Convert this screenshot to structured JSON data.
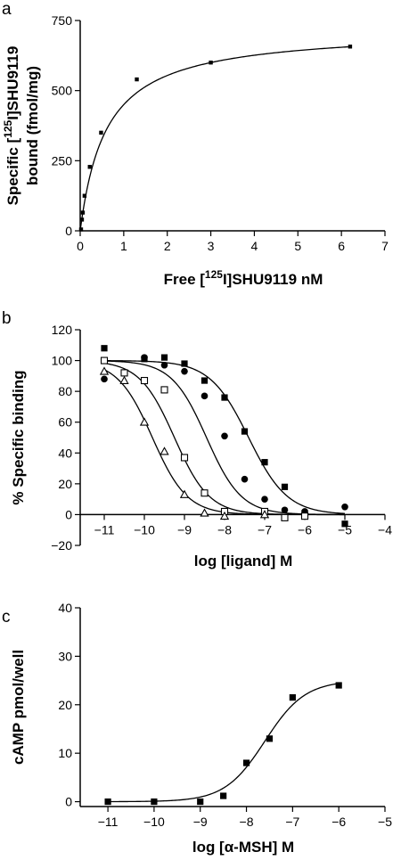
{
  "chart_data": [
    {
      "panel": "a",
      "type": "scatter",
      "xlabel": "Free [125I]SHU9119 nM",
      "xlabel_parts": {
        "pre": "Free [",
        "sup": "125",
        "post": "I]SHU9119 nM"
      },
      "ylabel_line1": {
        "pre": "Specific [",
        "sup": "125",
        "post": "I]SHU9119"
      },
      "ylabel_line2": "bound (fmol/mg)",
      "xlim": [
        0,
        7
      ],
      "ylim": [
        0,
        750
      ],
      "x_ticks": [
        0,
        1,
        2,
        3,
        4,
        5,
        6,
        7
      ],
      "y_ticks": [
        0,
        250,
        500,
        750
      ],
      "series": [
        {
          "marker": "filled-square",
          "points": [
            [
              0.02,
              5
            ],
            [
              0.04,
              40
            ],
            [
              0.06,
              65
            ],
            [
              0.1,
              125
            ],
            [
              0.22,
              228
            ],
            [
              0.48,
              350
            ],
            [
              1.3,
              540
            ],
            [
              3.0,
              600
            ],
            [
              6.2,
              657
            ]
          ]
        }
      ],
      "fit": {
        "model": "one-site saturation",
        "Bmax": 720,
        "Kd": 0.6
      }
    },
    {
      "panel": "b",
      "type": "scatter",
      "xlabel": "log [ligand] M",
      "ylabel": "% Specific binding",
      "xlim": [
        -11.6,
        -4
      ],
      "ylim": [
        -20,
        120
      ],
      "x_ticks": [
        -11,
        -10,
        -9,
        -8,
        -7,
        -6,
        -5,
        -4
      ],
      "y_ticks": [
        -20,
        0,
        20,
        40,
        60,
        80,
        100,
        120
      ],
      "series": [
        {
          "marker": "filled-square",
          "points": [
            [
              -11,
              108
            ],
            [
              -10,
              101
            ],
            [
              -9.5,
              102
            ],
            [
              -9,
              98
            ],
            [
              -8.5,
              87
            ],
            [
              -8,
              76
            ],
            [
              -7.5,
              54
            ],
            [
              -7,
              34
            ],
            [
              -6.5,
              18
            ],
            [
              -6,
              1
            ],
            [
              -5,
              -6
            ]
          ],
          "fit": {
            "logIC50": -7.4,
            "hill": 0.9
          }
        },
        {
          "marker": "filled-circle",
          "points": [
            [
              -11,
              88
            ],
            [
              -10,
              102
            ],
            [
              -9.5,
              97
            ],
            [
              -9,
              93
            ],
            [
              -8.5,
              77
            ],
            [
              -8,
              51
            ],
            [
              -7.5,
              23
            ],
            [
              -7,
              10
            ],
            [
              -6.5,
              3
            ],
            [
              -6,
              2
            ],
            [
              -5,
              5
            ]
          ],
          "fit": {
            "logIC50": -8.45,
            "hill": 1.0
          }
        },
        {
          "marker": "open-square",
          "points": [
            [
              -11,
              100
            ],
            [
              -10.5,
              92
            ],
            [
              -10,
              87
            ],
            [
              -9.5,
              81
            ],
            [
              -9,
              37
            ],
            [
              -8.5,
              14
            ],
            [
              -8,
              2
            ],
            [
              -7,
              2
            ],
            [
              -6.5,
              -2
            ],
            [
              -6,
              -1
            ]
          ],
          "fit": {
            "logIC50": -9.25,
            "hill": 1.0
          }
        },
        {
          "marker": "open-triangle",
          "points": [
            [
              -11,
              93
            ],
            [
              -10.5,
              87
            ],
            [
              -10,
              60
            ],
            [
              -9.5,
              41
            ],
            [
              -9,
              13
            ],
            [
              -8.5,
              1
            ],
            [
              -8,
              -1
            ],
            [
              -7,
              0
            ]
          ],
          "fit": {
            "logIC50": -9.8,
            "hill": 1.0
          }
        }
      ]
    },
    {
      "panel": "c",
      "type": "scatter",
      "xlabel": "log [α-MSH] M",
      "ylabel": "cAMP pmol/well",
      "xlim": [
        -11.6,
        -5
      ],
      "ylim": [
        -1,
        40
      ],
      "x_ticks": [
        -11,
        -10,
        -9,
        -8,
        -7,
        -6,
        -5
      ],
      "y_ticks": [
        0,
        10,
        20,
        30,
        40
      ],
      "series": [
        {
          "marker": "filled-square",
          "points": [
            [
              -11,
              0
            ],
            [
              -10,
              0
            ],
            [
              -9,
              0
            ],
            [
              -8.5,
              1.2
            ],
            [
              -8,
              8
            ],
            [
              -7.5,
              13
            ],
            [
              -7,
              21.5
            ],
            [
              -6,
              24
            ]
          ],
          "fit": {
            "bottom": 0,
            "top": 25,
            "logEC50": -7.6,
            "hill": 1.0
          }
        }
      ]
    }
  ]
}
